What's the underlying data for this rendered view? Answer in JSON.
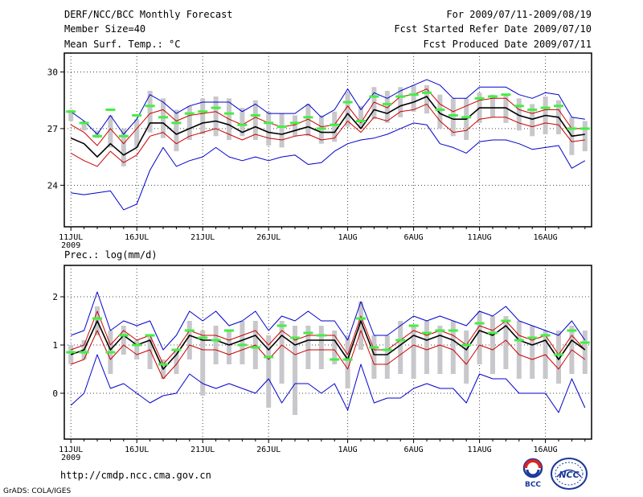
{
  "header": {
    "title": "DERF/NCC/BCC Monthly Forecast",
    "member_size": "Member Size=40",
    "variable_top": "Mean Surf. Temp.: °C",
    "period": "For 2009/07/11-2009/08/19",
    "started": "Fcst Started Refer Date 2009/07/10",
    "produced": "Fcst Produced Date 2009/07/11"
  },
  "footer": {
    "url": "http://cmdp.ncc.cma.gov.cn",
    "grads": "GrADS: COLA/IGES",
    "logo_bcc": "BCC",
    "logo_ncc": "NCC"
  },
  "colors": {
    "envelope": "#0000cc",
    "spread": "#cc0000",
    "mean": "#000000",
    "box": "#c8c8cc",
    "marker": "#44ee44"
  },
  "chart_data": [
    {
      "type": "line",
      "title": "Mean Surf. Temp.: °C",
      "xlabel": "",
      "ylabel": "°C",
      "ylim": [
        21.8,
        31.0
      ],
      "yticks": [
        24,
        27,
        30
      ],
      "grid": true,
      "xlim": [
        -0.5,
        39.5
      ],
      "x_ticks": [
        {
          "pos": 0,
          "label": "11JUL",
          "sub": "2009"
        },
        {
          "pos": 5,
          "label": "16JUL",
          "sub": ""
        },
        {
          "pos": 10,
          "label": "21JUL",
          "sub": ""
        },
        {
          "pos": 15,
          "label": "26JUL",
          "sub": ""
        },
        {
          "pos": 21,
          "label": "1AUG",
          "sub": ""
        },
        {
          "pos": 26,
          "label": "6AUG",
          "sub": ""
        },
        {
          "pos": 31,
          "label": "11AUG",
          "sub": ""
        },
        {
          "pos": 36,
          "label": "16AUG",
          "sub": ""
        }
      ],
      "series": [
        {
          "name": "max",
          "values": [
            27.9,
            27.4,
            26.7,
            27.7,
            26.7,
            27.5,
            28.8,
            28.4,
            27.8,
            28.2,
            28.4,
            28.4,
            28.4,
            27.9,
            28.3,
            27.8,
            27.8,
            27.8,
            28.3,
            27.6,
            28.0,
            29.1,
            28.0,
            28.9,
            28.6,
            29.0,
            29.3,
            29.6,
            29.3,
            28.6,
            28.6,
            29.2,
            29.2,
            29.2,
            28.8,
            28.6,
            28.9,
            28.8,
            27.6,
            27.5
          ]
        },
        {
          "name": "upper",
          "values": [
            27.2,
            26.8,
            26.1,
            27.0,
            26.2,
            27.0,
            27.8,
            28.0,
            27.4,
            27.7,
            27.8,
            27.9,
            27.5,
            27.2,
            27.6,
            27.3,
            27.1,
            27.2,
            27.5,
            27.1,
            27.2,
            28.2,
            27.3,
            28.4,
            28.1,
            28.7,
            28.8,
            29.1,
            28.3,
            27.9,
            28.2,
            28.5,
            28.6,
            28.6,
            28.0,
            27.8,
            28.0,
            28.0,
            27.0,
            27.0
          ]
        },
        {
          "name": "mean",
          "values": [
            26.5,
            26.2,
            25.5,
            26.2,
            25.6,
            26.0,
            27.3,
            27.3,
            26.7,
            27.0,
            27.3,
            27.4,
            27.2,
            26.8,
            27.1,
            26.8,
            26.7,
            26.9,
            27.1,
            26.8,
            26.8,
            27.8,
            27.0,
            28.0,
            27.8,
            28.2,
            28.4,
            28.7,
            27.8,
            27.5,
            27.5,
            28.1,
            28.1,
            28.1,
            27.7,
            27.5,
            27.7,
            27.6,
            26.6,
            26.7
          ]
        },
        {
          "name": "lower",
          "values": [
            25.7,
            25.3,
            25.0,
            25.8,
            25.2,
            25.6,
            26.6,
            26.8,
            26.2,
            26.6,
            26.8,
            27.0,
            26.7,
            26.4,
            26.7,
            26.5,
            26.4,
            26.6,
            26.7,
            26.4,
            26.5,
            27.4,
            26.8,
            27.6,
            27.4,
            27.9,
            28.0,
            28.3,
            27.4,
            26.8,
            26.9,
            27.5,
            27.6,
            27.6,
            27.3,
            27.1,
            27.3,
            27.2,
            26.3,
            26.4
          ]
        },
        {
          "name": "min",
          "values": [
            23.6,
            23.5,
            23.6,
            23.7,
            22.7,
            23.0,
            24.8,
            26.0,
            25.0,
            25.3,
            25.5,
            26.0,
            25.5,
            25.3,
            25.5,
            25.3,
            25.5,
            25.6,
            25.1,
            25.2,
            25.8,
            26.2,
            26.4,
            26.5,
            26.7,
            27.0,
            27.3,
            27.2,
            26.2,
            26.0,
            25.7,
            26.3,
            26.4,
            26.4,
            26.2,
            25.9,
            26.0,
            26.1,
            24.9,
            25.3
          ]
        },
        {
          "name": "box_high",
          "values": [
            28.0,
            27.4,
            26.9,
            27.7,
            27.0,
            27.5,
            29.0,
            28.6,
            28.0,
            28.2,
            28.6,
            28.7,
            28.6,
            28.1,
            28.5,
            27.9,
            27.8,
            27.7,
            28.3,
            27.7,
            27.9,
            28.9,
            28.2,
            29.2,
            29.0,
            29.2,
            29.3,
            29.3,
            28.8,
            28.6,
            28.6,
            28.9,
            28.8,
            28.8,
            28.6,
            28.3,
            28.7,
            28.5,
            27.6,
            27.4
          ]
        },
        {
          "name": "box_low",
          "values": [
            27.4,
            26.9,
            26.5,
            26.0,
            25.0,
            26.0,
            26.8,
            26.5,
            25.8,
            26.4,
            26.7,
            26.6,
            26.4,
            26.6,
            26.4,
            26.1,
            26.0,
            26.6,
            26.6,
            26.2,
            26.3,
            27.1,
            27.0,
            27.5,
            27.3,
            27.6,
            27.9,
            27.8,
            27.0,
            26.6,
            26.4,
            27.3,
            27.6,
            27.3,
            26.9,
            26.6,
            26.7,
            26.7,
            25.6,
            25.8
          ]
        },
        {
          "name": "marker",
          "values": [
            27.9,
            27.3,
            26.6,
            28.0,
            26.6,
            27.7,
            28.2,
            27.6,
            27.3,
            27.8,
            27.9,
            28.1,
            27.8,
            27.2,
            27.7,
            27.3,
            27.1,
            27.3,
            27.6,
            27.0,
            27.2,
            28.4,
            27.4,
            28.7,
            28.3,
            28.7,
            28.8,
            28.9,
            28.0,
            27.7,
            27.6,
            28.6,
            28.7,
            28.8,
            28.2,
            28.0,
            28.1,
            28.2,
            27.0,
            27.0
          ]
        }
      ]
    },
    {
      "type": "line",
      "title": "Prec.: log(mm/d)",
      "xlabel": "",
      "ylabel": "log(mm/d)",
      "ylim": [
        -0.95,
        2.65
      ],
      "yticks": [
        0,
        1,
        2
      ],
      "grid": true,
      "xlim": [
        -0.5,
        39.5
      ],
      "x_ticks": [
        {
          "pos": 0,
          "label": "11JUL",
          "sub": "2009"
        },
        {
          "pos": 5,
          "label": "16JUL",
          "sub": ""
        },
        {
          "pos": 10,
          "label": "21JUL",
          "sub": ""
        },
        {
          "pos": 15,
          "label": "26JUL",
          "sub": ""
        },
        {
          "pos": 21,
          "label": "1AUG",
          "sub": ""
        },
        {
          "pos": 26,
          "label": "6AUG",
          "sub": ""
        },
        {
          "pos": 31,
          "label": "11AUG",
          "sub": ""
        },
        {
          "pos": 36,
          "label": "16AUG",
          "sub": ""
        }
      ],
      "series": [
        {
          "name": "max",
          "values": [
            1.2,
            1.3,
            2.1,
            1.3,
            1.5,
            1.4,
            1.5,
            0.9,
            1.2,
            1.7,
            1.5,
            1.7,
            1.4,
            1.5,
            1.7,
            1.3,
            1.6,
            1.5,
            1.7,
            1.5,
            1.5,
            1.1,
            1.9,
            1.2,
            1.2,
            1.4,
            1.6,
            1.5,
            1.6,
            1.5,
            1.4,
            1.7,
            1.6,
            1.8,
            1.5,
            1.4,
            1.3,
            1.2,
            1.5,
            1.1
          ]
        },
        {
          "name": "upper",
          "values": [
            0.9,
            1.0,
            1.7,
            1.0,
            1.3,
            1.1,
            1.2,
            0.6,
            0.9,
            1.3,
            1.2,
            1.2,
            1.1,
            1.2,
            1.3,
            1.0,
            1.3,
            1.1,
            1.2,
            1.2,
            1.2,
            0.8,
            1.6,
            0.9,
            0.9,
            1.1,
            1.3,
            1.2,
            1.3,
            1.2,
            1.0,
            1.4,
            1.3,
            1.5,
            1.2,
            1.1,
            1.2,
            0.8,
            1.2,
            0.9
          ]
        },
        {
          "name": "mean",
          "values": [
            0.8,
            0.9,
            1.5,
            0.9,
            1.2,
            1.0,
            1.1,
            0.5,
            0.8,
            1.2,
            1.1,
            1.1,
            1.0,
            1.1,
            1.2,
            0.9,
            1.2,
            1.0,
            1.1,
            1.1,
            1.1,
            0.7,
            1.5,
            0.8,
            0.8,
            1.0,
            1.2,
            1.1,
            1.2,
            1.1,
            0.9,
            1.3,
            1.2,
            1.4,
            1.1,
            1.0,
            1.1,
            0.7,
            1.1,
            0.9
          ]
        },
        {
          "name": "lower",
          "values": [
            0.6,
            0.7,
            1.3,
            0.7,
            1.0,
            0.8,
            0.9,
            0.3,
            0.6,
            1.0,
            0.9,
            0.9,
            0.8,
            0.9,
            1.0,
            0.7,
            1.0,
            0.8,
            0.9,
            0.9,
            0.9,
            0.5,
            1.3,
            0.6,
            0.6,
            0.8,
            1.0,
            0.9,
            1.0,
            0.9,
            0.6,
            1.0,
            0.9,
            1.1,
            0.8,
            0.7,
            0.8,
            0.5,
            0.9,
            0.7
          ]
        },
        {
          "name": "min",
          "values": [
            -0.25,
            0.0,
            0.8,
            0.1,
            0.2,
            0.0,
            -0.2,
            -0.05,
            0.0,
            0.4,
            0.2,
            0.1,
            0.2,
            0.1,
            0.0,
            0.3,
            -0.2,
            0.2,
            0.2,
            0.0,
            0.2,
            -0.35,
            0.6,
            -0.2,
            -0.1,
            -0.1,
            0.1,
            0.2,
            0.1,
            0.1,
            -0.2,
            0.4,
            0.3,
            0.3,
            0.0,
            0.0,
            0.0,
            -0.4,
            0.3,
            -0.3
          ]
        },
        {
          "name": "box_high",
          "values": [
            1.0,
            1.1,
            1.8,
            1.3,
            1.4,
            1.1,
            1.2,
            0.7,
            0.9,
            1.5,
            1.3,
            1.4,
            1.3,
            1.5,
            1.5,
            1.2,
            1.5,
            1.4,
            1.4,
            1.4,
            1.3,
            1.2,
            1.9,
            1.2,
            1.2,
            1.5,
            1.4,
            1.5,
            1.4,
            1.5,
            1.3,
            1.7,
            1.6,
            1.6,
            1.5,
            1.4,
            1.3,
            1.3,
            1.4,
            1.3
          ]
        },
        {
          "name": "box_low",
          "values": [
            0.6,
            0.7,
            1.2,
            0.4,
            0.8,
            0.7,
            0.5,
            0.3,
            0.4,
            0.7,
            -0.05,
            0.6,
            0.6,
            0.6,
            0.5,
            -0.3,
            0.2,
            -0.45,
            0.5,
            0.5,
            0.6,
            0.1,
            0.9,
            0.3,
            0.3,
            0.4,
            0.3,
            0.4,
            0.4,
            0.4,
            0.2,
            0.6,
            0.4,
            0.5,
            0.3,
            0.3,
            0.3,
            0.2,
            0.4,
            0.4
          ]
        },
        {
          "name": "marker",
          "values": [
            0.85,
            0.85,
            1.55,
            0.85,
            1.2,
            1.0,
            1.2,
            0.6,
            0.9,
            1.3,
            1.15,
            1.1,
            1.3,
            1.0,
            0.95,
            0.75,
            1.4,
            1.15,
            1.25,
            1.2,
            0.7,
            0.7,
            1.55,
            0.95,
            0.9,
            1.1,
            1.4,
            1.25,
            1.3,
            1.3,
            1.0,
            1.45,
            1.25,
            1.5,
            1.1,
            1.15,
            1.2,
            0.8,
            1.3,
            1.05
          ]
        }
      ]
    }
  ]
}
